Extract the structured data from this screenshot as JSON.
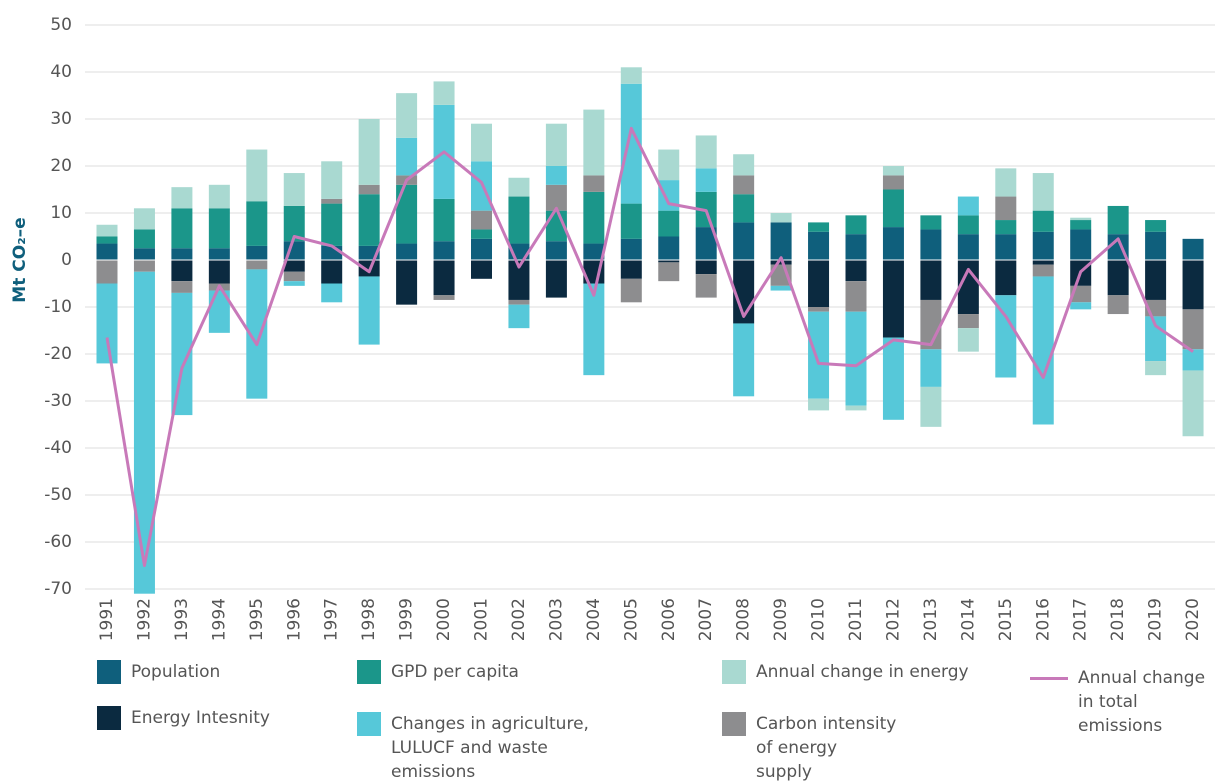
{
  "chart_data": {
    "type": "bar",
    "stacked": true,
    "y_label": "Mt CO₂–e",
    "categories": [
      "1991",
      "1992",
      "1993",
      "1994",
      "1995",
      "1996",
      "1997",
      "1998",
      "1999",
      "2000",
      "2001",
      "2002",
      "2003",
      "2004",
      "2005",
      "2006",
      "2007",
      "2008",
      "2009",
      "2010",
      "2011",
      "2012",
      "2013",
      "2014",
      "2015",
      "2016",
      "2017",
      "2018",
      "2019",
      "2020"
    ],
    "ylim": [
      -70,
      50
    ],
    "yticks": [
      -70,
      -60,
      -50,
      -40,
      -30,
      -20,
      -10,
      0,
      10,
      20,
      30,
      40,
      50
    ],
    "grid": true,
    "series": [
      {
        "name": "Population",
        "color": "#0f5f7c",
        "values": [
          3.5,
          2.5,
          2.5,
          2.5,
          3,
          4,
          3,
          3,
          3.5,
          4,
          4.5,
          3.5,
          4,
          3.5,
          4.5,
          5,
          7,
          8,
          8,
          6,
          5.5,
          7,
          6.5,
          5.5,
          5.5,
          6,
          6.5,
          5.5,
          6,
          4.5
        ]
      },
      {
        "name": "GPD per capita",
        "color": "#1b968a",
        "values": [
          1.5,
          4,
          8.5,
          8.5,
          9.5,
          7.5,
          9,
          11,
          12.5,
          9,
          2,
          10,
          6.5,
          11,
          7.5,
          5.5,
          7.5,
          6,
          0,
          2,
          4,
          8,
          3,
          4,
          3,
          4.5,
          2,
          6,
          2.5,
          0
        ]
      },
      {
        "name": "Annual change in energy",
        "color": "#a9d9d1",
        "values": [
          2.5,
          4.5,
          4.5,
          5,
          11,
          7,
          8,
          14,
          9.5,
          5,
          8,
          4,
          9,
          14,
          3.5,
          6.5,
          7,
          4.5,
          2,
          -2.5,
          -1,
          2,
          -8.5,
          -5,
          6,
          8,
          0.5,
          0,
          -3,
          -14
        ]
      },
      {
        "name": "Energy Intesnity",
        "color": "#0b2a40",
        "values": [
          0,
          0,
          -4.5,
          -5,
          0,
          -2.5,
          -5,
          -3.5,
          -9.5,
          -7.5,
          -4,
          -8.5,
          -8,
          -5,
          -4,
          -0.5,
          -3,
          -13.5,
          -1,
          -10,
          -4.5,
          -16.5,
          -8.5,
          -11.5,
          -7.5,
          -1,
          -5.5,
          -7.5,
          -8.5,
          -10.5
        ]
      },
      {
        "name": "Changes in agriculture, LULUCF and waste emissions",
        "color": "#56c8d9",
        "values": [
          -17,
          -68.5,
          -26,
          -9,
          -27.5,
          -1,
          -4,
          -14.5,
          8,
          20,
          10.5,
          -5,
          4,
          -19.5,
          25.5,
          6.5,
          5,
          -15.5,
          -1,
          -18.5,
          -20,
          -17.5,
          -8,
          4,
          -17.5,
          -31.5,
          -1.5,
          0,
          -9.5,
          -4.5
        ]
      },
      {
        "name": "Carbon intensity of energy supply",
        "color": "#8d8d8f",
        "values": [
          -5,
          -2.5,
          -2.5,
          -1.5,
          -2,
          -2,
          1,
          2,
          2,
          -1,
          4,
          -1,
          5.5,
          3.5,
          -5,
          -4,
          -5,
          4,
          -4.5,
          -1,
          -6.5,
          3,
          -10.5,
          -3,
          5,
          -2.5,
          -3.5,
          -4,
          -3.5,
          -8.5
        ]
      },
      {
        "name": "Annual change in total emissions",
        "color": "#c879b9",
        "type": "line",
        "values": [
          -16.5,
          -65,
          -23,
          -5.5,
          -18,
          5,
          3,
          -2.5,
          17,
          23,
          16.5,
          -1.5,
          11,
          -7.5,
          28,
          12,
          10.5,
          -12,
          0.5,
          -22,
          -22.5,
          -17,
          -18,
          -2,
          -12,
          -25,
          -2.5,
          4.5,
          -14,
          -19.5
        ]
      }
    ]
  }
}
